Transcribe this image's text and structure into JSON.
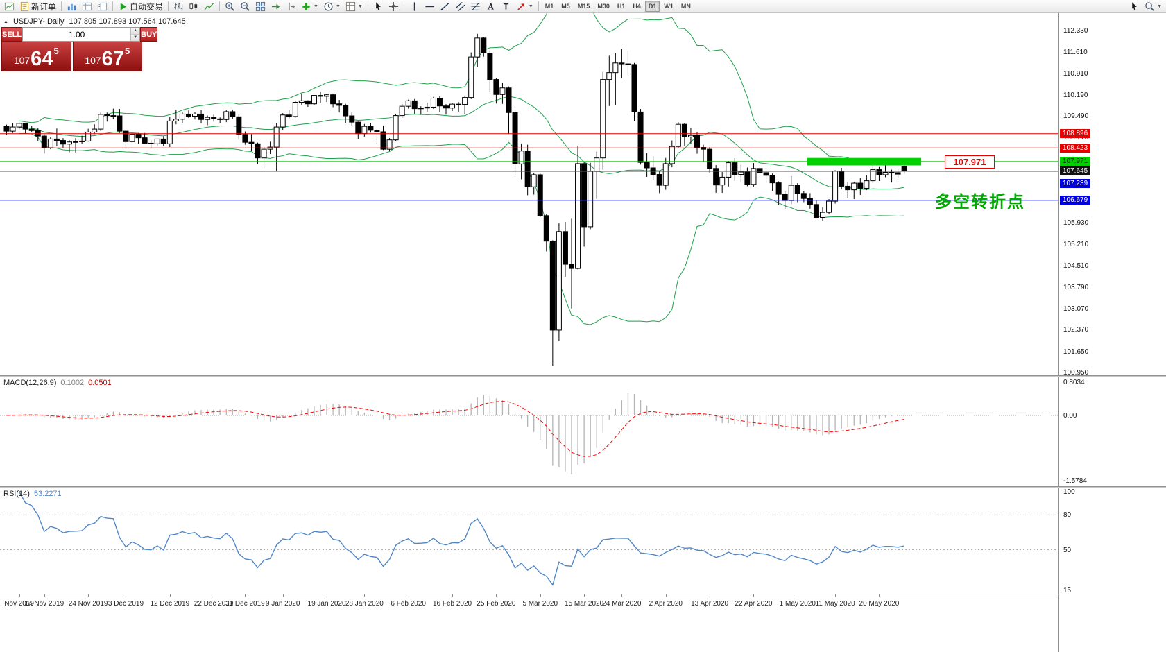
{
  "toolbar": {
    "items": [
      {
        "type": "icon",
        "name": "new-chart-icon",
        "icon": "newchart"
      },
      {
        "type": "button",
        "name": "new-order-button",
        "icon": "neworder",
        "label": "新订单"
      },
      {
        "type": "sep"
      },
      {
        "type": "icon",
        "name": "charts-list-icon",
        "icon": "charts"
      },
      {
        "type": "icon",
        "name": "market-watch-icon",
        "icon": "marketwatch"
      },
      {
        "type": "icon",
        "name": "navigator-icon",
        "icon": "navigator"
      },
      {
        "type": "sep"
      },
      {
        "type": "button",
        "name": "autotrading-button",
        "icon": "play",
        "label": "自动交易"
      },
      {
        "type": "sep"
      },
      {
        "type": "icon",
        "name": "bar-chart-icon",
        "icon": "bars"
      },
      {
        "type": "icon",
        "name": "candlestick-chart-icon",
        "icon": "candles"
      },
      {
        "type": "icon",
        "name": "line-chart-icon",
        "icon": "linechart"
      },
      {
        "type": "sep"
      },
      {
        "type": "icon",
        "name": "zoom-in-icon",
        "icon": "zoomin"
      },
      {
        "type": "icon",
        "name": "zoom-out-icon",
        "icon": "zoomout"
      },
      {
        "type": "icon",
        "name": "tile-windows-icon",
        "icon": "tile"
      },
      {
        "type": "icon",
        "name": "auto-scroll-icon",
        "icon": "autoscroll"
      },
      {
        "type": "icon",
        "name": "chart-shift-icon",
        "icon": "shift"
      },
      {
        "type": "dropdown",
        "name": "indicators-menu-button",
        "icon": "indicators"
      },
      {
        "type": "dropdown",
        "name": "periods-menu-button",
        "icon": "clock"
      },
      {
        "type": "dropdown",
        "name": "templates-menu-button",
        "icon": "template"
      },
      {
        "type": "sep"
      },
      {
        "type": "icon",
        "name": "cursor-tool-icon",
        "icon": "cursor"
      },
      {
        "type": "icon",
        "name": "crosshair-tool-icon",
        "icon": "crosshair"
      },
      {
        "type": "sep"
      },
      {
        "type": "icon",
        "name": "vertical-line-tool-icon",
        "icon": "vline"
      },
      {
        "type": "icon",
        "name": "horizontal-line-tool-icon",
        "icon": "hline"
      },
      {
        "type": "icon",
        "name": "trendline-tool-icon",
        "icon": "trend"
      },
      {
        "type": "icon",
        "name": "channel-tool-icon",
        "icon": "channel"
      },
      {
        "type": "icon",
        "name": "fibonacci-tool-icon",
        "icon": "fibo"
      },
      {
        "type": "icon",
        "name": "text-tool-icon",
        "icon": "textA"
      },
      {
        "type": "icon",
        "name": "text-label-tool-icon",
        "icon": "textT"
      },
      {
        "type": "dropdown",
        "name": "arrows-tool-button",
        "icon": "arrow"
      },
      {
        "type": "sep"
      },
      {
        "type": "tf",
        "name": "timeframe-m1",
        "label": "M1"
      },
      {
        "type": "tf",
        "name": "timeframe-m5",
        "label": "M5"
      },
      {
        "type": "tf",
        "name": "timeframe-m15",
        "label": "M15"
      },
      {
        "type": "tf",
        "name": "timeframe-m30",
        "label": "M30"
      },
      {
        "type": "tf",
        "name": "timeframe-h1",
        "label": "H1"
      },
      {
        "type": "tf",
        "name": "timeframe-h4",
        "label": "H4"
      },
      {
        "type": "tf",
        "name": "timeframe-d1",
        "label": "D1",
        "active": true
      },
      {
        "type": "tf",
        "name": "timeframe-w1",
        "label": "W1"
      },
      {
        "type": "tf",
        "name": "timeframe-mn",
        "label": "MN"
      },
      {
        "type": "spacer"
      },
      {
        "type": "icon",
        "name": "pointer-icon",
        "icon": "cursor"
      },
      {
        "type": "dropdown",
        "name": "symbol-search-icon",
        "icon": "magnify"
      }
    ]
  },
  "chart": {
    "marker": "▲",
    "symbol": "USDJPY-,Daily",
    "ohlc": "107.805 107.893 107.564 107.645",
    "bb_color": "#1da14b",
    "trade": {
      "sell_label": "SELL",
      "buy_label": "BUY",
      "volume": "1.00",
      "sell_price": {
        "small": "107",
        "big": "64",
        "sup": "5"
      },
      "buy_price": {
        "small": "107",
        "big": "67",
        "sup": "5"
      }
    },
    "annotation": {
      "text": "多空转折点",
      "color": "#00a800"
    },
    "level_label": {
      "text": "107.971",
      "color": "#e60000"
    },
    "levels": [
      {
        "label": "108.896",
        "price": 108.896,
        "color": "#e60000",
        "badge_bg": "#e60000",
        "badge_fg": "#ffffff",
        "line": true
      },
      {
        "label": "108.423",
        "price": 108.423,
        "color": "#e60000",
        "badge_bg": "#e60000",
        "badge_fg": "#ffffff",
        "line": true
      },
      {
        "label": "107.971",
        "price": 107.971,
        "color": "#00c000",
        "badge_bg": "#00ce00",
        "badge_fg": "#003300",
        "line": true
      },
      {
        "label": "107.645",
        "price": 107.645,
        "color": "#555555",
        "badge_bg": "#111111",
        "badge_fg": "#ffffff",
        "line": true
      },
      {
        "label": "107.239",
        "price": 107.239,
        "color": "#2020cc",
        "badge_bg": "#0000dd",
        "badge_fg": "#ffffff",
        "line": false
      },
      {
        "label": "106.679",
        "price": 106.679,
        "color": "#3a3ad0",
        "badge_bg": "#0000dd",
        "badge_fg": "#ffffff",
        "line": true
      }
    ],
    "zone": {
      "i1": 128,
      "i2": 145.7,
      "price_top": 108.09,
      "price_bottom": 107.84,
      "color": "#00d300"
    },
    "price_ticks": [
      "112.330",
      "111.610",
      "110.910",
      "110.190",
      "109.490",
      "108.770",
      "105.930",
      "105.210",
      "104.510",
      "103.790",
      "103.070",
      "102.370",
      "101.650",
      "100.950"
    ],
    "candles": [
      [
        109.15,
        109.2,
        108.85,
        108.98
      ],
      [
        108.98,
        109.25,
        108.92,
        109.12
      ],
      [
        109.12,
        109.28,
        109.01,
        109.24
      ],
      [
        109.24,
        109.25,
        108.89,
        109.05
      ],
      [
        109.05,
        109.16,
        108.94,
        109.0
      ],
      [
        109.0,
        109.08,
        108.65,
        108.82
      ],
      [
        108.82,
        108.88,
        108.24,
        108.43
      ],
      [
        108.43,
        108.78,
        108.38,
        108.72
      ],
      [
        108.72,
        109.07,
        108.48,
        108.67
      ],
      [
        108.67,
        108.75,
        108.42,
        108.55
      ],
      [
        108.55,
        108.68,
        108.28,
        108.62
      ],
      [
        108.62,
        108.75,
        108.27,
        108.63
      ],
      [
        108.63,
        108.83,
        108.56,
        108.65
      ],
      [
        108.65,
        109.06,
        108.63,
        108.95
      ],
      [
        108.95,
        109.21,
        108.88,
        109.05
      ],
      [
        109.05,
        109.62,
        108.98,
        109.54
      ],
      [
        109.54,
        109.6,
        109.3,
        109.5
      ],
      [
        109.5,
        109.73,
        109.38,
        109.49
      ],
      [
        109.49,
        109.72,
        108.92,
        108.98
      ],
      [
        108.98,
        109.01,
        108.43,
        108.63
      ],
      [
        108.63,
        108.9,
        108.5,
        108.88
      ],
      [
        108.88,
        108.92,
        108.56,
        108.76
      ],
      [
        108.76,
        108.92,
        108.55,
        108.58
      ],
      [
        108.58,
        108.68,
        108.42,
        108.56
      ],
      [
        108.56,
        108.72,
        108.47,
        108.72
      ],
      [
        108.72,
        108.81,
        108.48,
        108.56
      ],
      [
        108.56,
        109.45,
        108.45,
        109.32
      ],
      [
        109.32,
        109.7,
        109.21,
        109.38
      ],
      [
        109.38,
        109.63,
        109.26,
        109.55
      ],
      [
        109.55,
        109.67,
        109.42,
        109.48
      ],
      [
        109.48,
        109.63,
        109.37,
        109.55
      ],
      [
        109.55,
        109.68,
        109.24,
        109.37
      ],
      [
        109.37,
        109.5,
        109.18,
        109.44
      ],
      [
        109.44,
        109.53,
        109.3,
        109.39
      ],
      [
        109.39,
        109.44,
        109.26,
        109.37
      ],
      [
        109.37,
        109.68,
        109.28,
        109.63
      ],
      [
        109.63,
        109.7,
        109.4,
        109.46
      ],
      [
        109.46,
        109.53,
        108.7,
        108.87
      ],
      [
        108.87,
        108.97,
        108.53,
        108.61
      ],
      [
        108.61,
        108.88,
        108.32,
        108.56
      ],
      [
        108.56,
        108.6,
        107.89,
        108.09
      ],
      [
        108.09,
        108.46,
        107.77,
        108.38
      ],
      [
        108.38,
        108.63,
        108.22,
        108.45
      ],
      [
        108.45,
        109.24,
        107.65,
        109.12
      ],
      [
        109.12,
        109.58,
        109.01,
        109.52
      ],
      [
        109.52,
        109.68,
        109.41,
        109.47
      ],
      [
        109.47,
        110.0,
        109.43,
        109.94
      ],
      [
        109.94,
        110.21,
        109.85,
        109.99
      ],
      [
        109.99,
        110.01,
        109.79,
        109.89
      ],
      [
        109.89,
        110.18,
        109.85,
        110.17
      ],
      [
        110.17,
        110.29,
        109.93,
        110.14
      ],
      [
        110.14,
        110.22,
        109.95,
        110.19
      ],
      [
        110.19,
        110.23,
        109.78,
        109.89
      ],
      [
        109.89,
        110.02,
        109.6,
        109.84
      ],
      [
        109.84,
        109.89,
        109.26,
        109.49
      ],
      [
        109.49,
        109.6,
        109.17,
        109.28
      ],
      [
        109.28,
        109.3,
        108.73,
        108.9
      ],
      [
        108.9,
        109.22,
        108.8,
        109.14
      ],
      [
        109.14,
        109.26,
        108.93,
        109.01
      ],
      [
        109.01,
        109.05,
        108.56,
        108.96
      ],
      [
        108.96,
        109.17,
        108.35,
        108.38
      ],
      [
        108.38,
        108.75,
        108.31,
        108.69
      ],
      [
        108.69,
        109.54,
        108.65,
        109.5
      ],
      [
        109.5,
        109.89,
        109.42,
        109.81
      ],
      [
        109.81,
        110.03,
        109.73,
        109.99
      ],
      [
        109.99,
        110.05,
        109.55,
        109.73
      ],
      [
        109.73,
        109.81,
        109.53,
        109.75
      ],
      [
        109.75,
        109.93,
        109.63,
        109.78
      ],
      [
        109.78,
        110.12,
        109.72,
        110.08
      ],
      [
        110.08,
        110.15,
        109.62,
        109.82
      ],
      [
        109.82,
        109.88,
        109.53,
        109.75
      ],
      [
        109.75,
        109.92,
        109.65,
        109.88
      ],
      [
        109.88,
        109.95,
        109.63,
        109.87
      ],
      [
        109.87,
        110.13,
        109.55,
        110.1
      ],
      [
        110.1,
        111.6,
        110.05,
        111.45
      ],
      [
        111.45,
        112.22,
        111.13,
        112.08
      ],
      [
        112.08,
        112.12,
        111.46,
        111.58
      ],
      [
        111.58,
        111.67,
        110.28,
        110.7
      ],
      [
        110.7,
        110.76,
        109.9,
        110.2
      ],
      [
        110.2,
        110.58,
        109.89,
        110.42
      ],
      [
        110.42,
        110.47,
        108.9,
        109.6
      ],
      [
        109.6,
        109.68,
        107.51,
        107.89
      ],
      [
        107.89,
        108.57,
        107.38,
        108.32
      ],
      [
        108.32,
        108.53,
        106.85,
        107.13
      ],
      [
        107.13,
        107.6,
        106.87,
        107.53
      ],
      [
        107.53,
        107.57,
        106.12,
        106.17
      ],
      [
        106.17,
        106.22,
        104.98,
        105.32
      ],
      [
        105.32,
        105.35,
        101.18,
        102.36
      ],
      [
        102.36,
        105.91,
        102.0,
        105.64
      ],
      [
        105.64,
        105.96,
        104.14,
        104.55
      ],
      [
        104.55,
        106.07,
        103.08,
        104.41
      ],
      [
        104.41,
        108.5,
        104.38,
        107.9
      ],
      [
        107.9,
        107.96,
        105.14,
        105.8
      ],
      [
        105.8,
        107.93,
        105.72,
        107.64
      ],
      [
        107.64,
        108.3,
        106.73,
        108.09
      ],
      [
        108.09,
        110.95,
        107.7,
        110.7
      ],
      [
        110.7,
        111.49,
        109.82,
        110.93
      ],
      [
        110.93,
        111.59,
        109.85,
        111.25
      ],
      [
        111.25,
        111.71,
        110.75,
        111.22
      ],
      [
        111.22,
        111.68,
        110.85,
        111.2
      ],
      [
        111.2,
        111.25,
        109.31,
        109.62
      ],
      [
        109.62,
        109.72,
        107.87,
        107.94
      ],
      [
        107.94,
        108.25,
        107.46,
        107.76
      ],
      [
        107.76,
        108.14,
        107.35,
        107.54
      ],
      [
        107.54,
        107.66,
        106.92,
        107.18
      ],
      [
        107.18,
        108.09,
        107.03,
        107.9
      ],
      [
        107.9,
        108.67,
        107.78,
        108.47
      ],
      [
        108.47,
        109.28,
        108.41,
        109.21
      ],
      [
        109.21,
        109.26,
        108.5,
        108.79
      ],
      [
        108.79,
        109.1,
        108.56,
        108.84
      ],
      [
        108.84,
        108.95,
        108.23,
        108.44
      ],
      [
        108.44,
        108.53,
        107.95,
        108.38
      ],
      [
        108.38,
        108.45,
        107.6,
        107.74
      ],
      [
        107.74,
        107.85,
        106.93,
        107.19
      ],
      [
        107.19,
        107.62,
        106.93,
        107.45
      ],
      [
        107.45,
        107.99,
        107.14,
        107.93
      ],
      [
        107.93,
        108.08,
        107.33,
        107.54
      ],
      [
        107.54,
        107.86,
        107.28,
        107.62
      ],
      [
        107.62,
        107.77,
        107.15,
        107.21
      ],
      [
        107.21,
        107.92,
        107.14,
        107.74
      ],
      [
        107.74,
        107.98,
        107.46,
        107.6
      ],
      [
        107.6,
        107.76,
        107.3,
        107.51
      ],
      [
        107.51,
        107.57,
        106.99,
        107.26
      ],
      [
        107.26,
        107.31,
        106.53,
        106.88
      ],
      [
        106.88,
        106.98,
        106.4,
        106.67
      ],
      [
        106.67,
        107.49,
        106.55,
        107.18
      ],
      [
        107.18,
        107.25,
        106.62,
        106.91
      ],
      [
        106.91,
        106.98,
        106.62,
        106.74
      ],
      [
        106.74,
        106.92,
        106.4,
        106.54
      ],
      [
        106.54,
        106.68,
        106.07,
        106.11
      ],
      [
        106.11,
        106.45,
        105.99,
        106.28
      ],
      [
        106.28,
        106.72,
        106.21,
        106.65
      ],
      [
        106.65,
        107.68,
        106.57,
        107.65
      ],
      [
        107.65,
        107.76,
        107.05,
        107.15
      ],
      [
        107.15,
        107.29,
        106.75,
        107.03
      ],
      [
        107.03,
        107.3,
        106.72,
        107.25
      ],
      [
        107.25,
        107.42,
        106.86,
        107.08
      ],
      [
        107.08,
        107.51,
        107.02,
        107.33
      ],
      [
        107.33,
        107.99,
        107.26,
        107.7
      ],
      [
        107.7,
        107.79,
        107.32,
        107.53
      ],
      [
        107.53,
        107.91,
        107.45,
        107.61
      ],
      [
        107.61,
        107.7,
        107.27,
        107.6
      ],
      [
        107.6,
        107.75,
        107.42,
        107.55
      ],
      [
        107.805,
        107.893,
        107.564,
        107.645
      ]
    ]
  },
  "macd": {
    "title": "MACD(12,26,9)",
    "value_main": "0.1002",
    "value_signal": "0.0501",
    "scale_labels": [
      "0.8034",
      "0.00",
      "-1.5784"
    ],
    "hist_color": "#b4b4b4",
    "signal_color": "#ff0000"
  },
  "rsi": {
    "title": "RSI(14)",
    "value": "53.2271",
    "scale_labels": [
      "100",
      "80",
      "50",
      "15"
    ],
    "levels": [
      80,
      50
    ],
    "line_color": "#4f86c8"
  },
  "time_axis": {
    "ticks": [
      {
        "label": "Nov 2019",
        "i": 2
      },
      {
        "label": "14 Nov 2019",
        "i": 6
      },
      {
        "label": "24 Nov 2019",
        "i": 13
      },
      {
        "label": "3 Dec 2019",
        "i": 19
      },
      {
        "label": "12 Dec 2019",
        "i": 26
      },
      {
        "label": "22 Dec 2019",
        "i": 33
      },
      {
        "label": "31 Dec 2019",
        "i": 38
      },
      {
        "label": "9 Jan 2020",
        "i": 44
      },
      {
        "label": "19 Jan 2020",
        "i": 51
      },
      {
        "label": "28 Jan 2020",
        "i": 57
      },
      {
        "label": "6 Feb 2020",
        "i": 64
      },
      {
        "label": "16 Feb 2020",
        "i": 71
      },
      {
        "label": "25 Feb 2020",
        "i": 78
      },
      {
        "label": "5 Mar 2020",
        "i": 85
      },
      {
        "label": "15 Mar 2020",
        "i": 92
      },
      {
        "label": "24 Mar 2020",
        "i": 98
      },
      {
        "label": "2 Apr 2020",
        "i": 105
      },
      {
        "label": "13 Apr 2020",
        "i": 112
      },
      {
        "label": "22 Apr 2020",
        "i": 119
      },
      {
        "label": "1 May 2020",
        "i": 126
      },
      {
        "label": "11 May 2020",
        "i": 132
      },
      {
        "label": "20 May 2020",
        "i": 139
      }
    ]
  }
}
